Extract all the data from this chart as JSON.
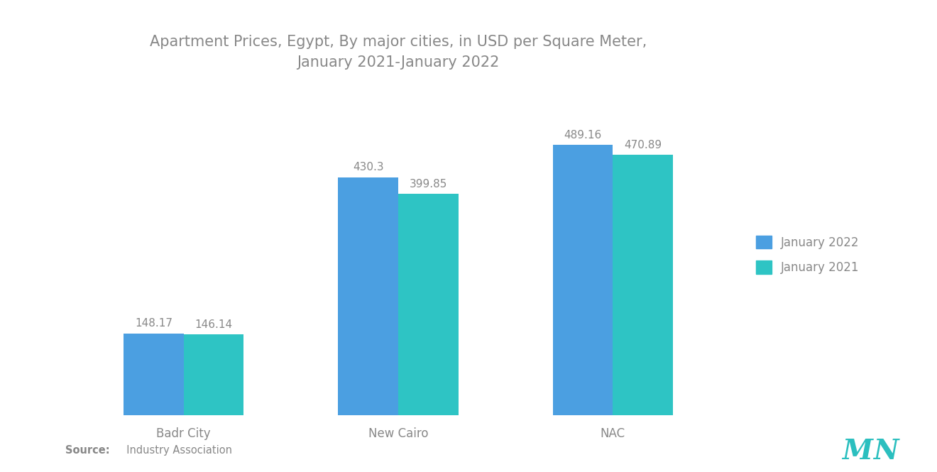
{
  "title": "Apartment Prices, Egypt, By major cities, in USD per Square Meter,\nJanuary 2021-January 2022",
  "categories": [
    "Badr City",
    "New Cairo",
    "NAC"
  ],
  "jan2022_values": [
    148.17,
    430.3,
    489.16
  ],
  "jan2021_values": [
    146.14,
    399.85,
    470.89
  ],
  "jan2022_color": "#4B9FE1",
  "jan2021_color": "#2EC4C4",
  "jan2022_label": "January 2022",
  "jan2021_label": "January 2021",
  "bar_width": 0.28,
  "title_fontsize": 15,
  "label_fontsize": 12,
  "value_fontsize": 11,
  "source_bold": "Source:",
  "source_normal": "  Industry Association",
  "background_color": "#ffffff",
  "text_color": "#888888",
  "ylim": [
    0,
    580
  ]
}
